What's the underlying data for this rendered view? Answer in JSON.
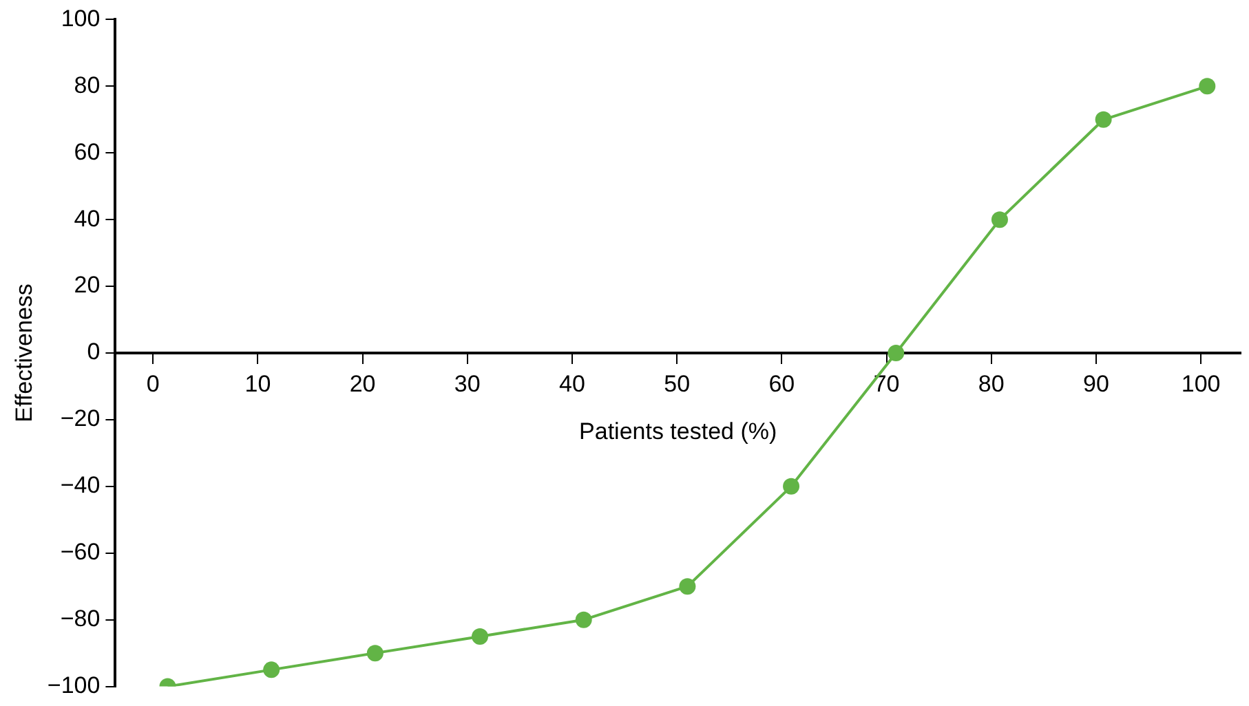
{
  "chart_data": {
    "type": "line",
    "xlabel": "Patients tested (%)",
    "ylabel": "Effectiveness",
    "x": [
      1.4,
      11.3,
      21.2,
      31.2,
      41.1,
      51.0,
      60.9,
      70.9,
      80.8,
      90.7,
      100.6
    ],
    "series": [
      {
        "color": "#62b446",
        "values": [
          -100,
          -95,
          -90,
          -85,
          -80,
          -70,
          -40,
          0,
          40,
          70,
          80
        ]
      }
    ],
    "xlim": [
      -3.6,
      103.8
    ],
    "xticks": [
      0,
      10,
      20,
      30,
      40,
      50,
      60,
      70,
      80,
      90,
      100
    ],
    "ylim": [
      -100,
      100
    ],
    "yticks": [
      -100,
      -80,
      -60,
      -40,
      -20,
      0,
      20,
      40,
      60,
      80,
      100
    ],
    "grid": false,
    "legend": false,
    "marker": "circle",
    "line_style": "solid"
  }
}
